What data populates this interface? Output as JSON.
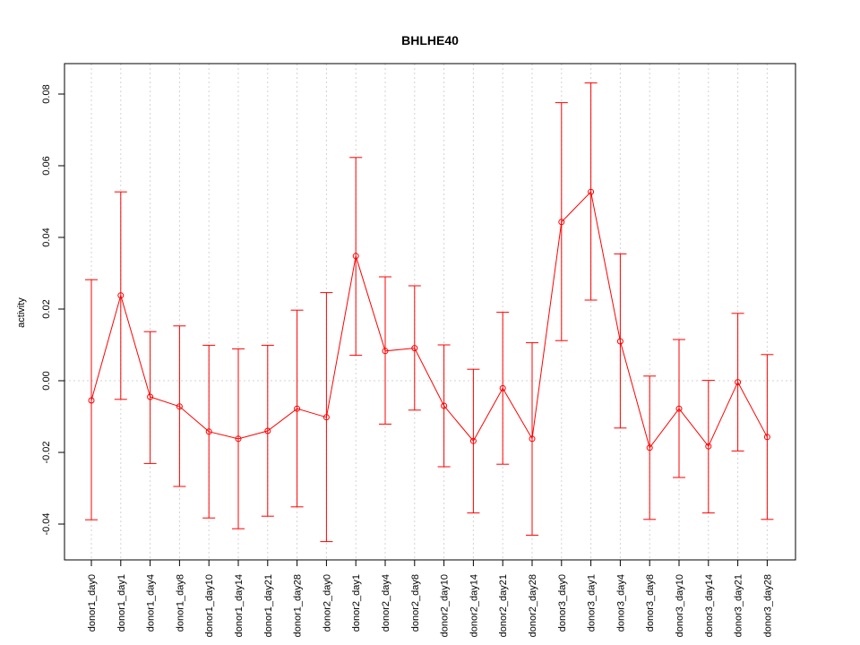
{
  "chart_data": {
    "type": "line",
    "title": "BHLHE40",
    "xlabel": "",
    "ylabel": "activity",
    "ylim": [
      -0.05,
      0.088
    ],
    "yticks": [
      -0.04,
      -0.02,
      0.0,
      0.02,
      0.04,
      0.06,
      0.08
    ],
    "ytick_labels": [
      "-0.04",
      "-0.02",
      "0.00",
      "0.02",
      "0.04",
      "0.06",
      "0.08"
    ],
    "grid": true,
    "color": "#ff0000",
    "categories": [
      "donor1_day0",
      "donor1_day1",
      "donor1_day4",
      "donor1_day8",
      "donor1_day10",
      "donor1_day14",
      "donor1_day21",
      "donor1_day28",
      "donor2_day0",
      "donor2_day1",
      "donor2_day4",
      "donor2_day8",
      "donor2_day10",
      "donor2_day14",
      "donor2_day21",
      "donor2_day28",
      "donor3_day0",
      "donor3_day1",
      "donor3_day4",
      "donor3_day8",
      "donor3_day10",
      "donor3_day14",
      "donor3_day21",
      "donor3_day28"
    ],
    "values": [
      -0.0055,
      0.0238,
      -0.0045,
      -0.0072,
      -0.0142,
      -0.0162,
      -0.014,
      -0.0078,
      -0.0102,
      0.0348,
      0.0083,
      0.0091,
      -0.007,
      -0.0168,
      -0.0021,
      -0.0162,
      0.0443,
      0.0527,
      0.011,
      -0.0187,
      -0.0078,
      -0.0183,
      -0.0004,
      -0.0157
    ],
    "upper": [
      0.0282,
      0.0527,
      0.0137,
      0.0153,
      0.0099,
      0.0089,
      0.0099,
      0.0197,
      0.0246,
      0.0623,
      0.029,
      0.0265,
      0.01,
      0.0032,
      0.0191,
      0.0106,
      0.0776,
      0.0831,
      0.0354,
      0.0013,
      0.0115,
      0.0001,
      0.0188,
      0.0073
    ],
    "lower": [
      -0.0388,
      -0.0052,
      -0.0231,
      -0.0295,
      -0.0383,
      -0.0413,
      -0.0378,
      -0.0352,
      -0.0449,
      0.0071,
      -0.0121,
      -0.0082,
      -0.024,
      -0.0369,
      -0.0233,
      -0.0431,
      0.0112,
      0.0225,
      -0.0132,
      -0.0387,
      -0.027,
      -0.0369,
      -0.0196,
      -0.0387
    ]
  }
}
